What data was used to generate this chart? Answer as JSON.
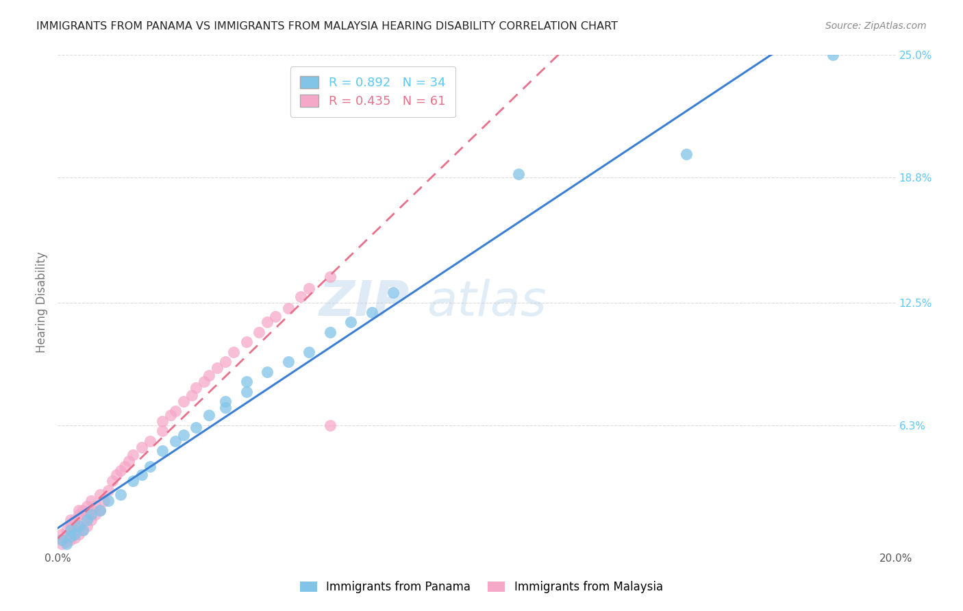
{
  "title": "IMMIGRANTS FROM PANAMA VS IMMIGRANTS FROM MALAYSIA HEARING DISABILITY CORRELATION CHART",
  "source": "Source: ZipAtlas.com",
  "ylabel": "Hearing Disability",
  "xlim": [
    0.0,
    0.2
  ],
  "ylim": [
    0.0,
    0.25
  ],
  "ytick_positions": [
    0.063,
    0.125,
    0.188,
    0.25
  ],
  "ytick_labels": [
    "6.3%",
    "12.5%",
    "18.8%",
    "25.0%"
  ],
  "panama_color": "#82c4e8",
  "malaysia_color": "#f5a8c8",
  "panama_line_color": "#3a7fd4",
  "malaysia_line_color": "#e8708a",
  "panama_R": 0.892,
  "panama_N": 34,
  "malaysia_R": 0.435,
  "malaysia_N": 61,
  "watermark_zip": "ZIP",
  "watermark_atlas": "atlas",
  "background_color": "#ffffff",
  "panama_x": [
    0.001,
    0.002,
    0.003,
    0.003,
    0.004,
    0.005,
    0.006,
    0.007,
    0.008,
    0.01,
    0.012,
    0.015,
    0.018,
    0.02,
    0.022,
    0.025,
    0.028,
    0.03,
    0.033,
    0.036,
    0.04,
    0.045,
    0.05,
    0.055,
    0.06,
    0.065,
    0.07,
    0.075,
    0.08,
    0.04,
    0.045,
    0.11,
    0.15,
    0.185
  ],
  "panama_y": [
    0.005,
    0.003,
    0.007,
    0.01,
    0.008,
    0.012,
    0.01,
    0.015,
    0.018,
    0.02,
    0.025,
    0.028,
    0.035,
    0.038,
    0.042,
    0.05,
    0.055,
    0.058,
    0.062,
    0.068,
    0.072,
    0.08,
    0.09,
    0.095,
    0.1,
    0.11,
    0.115,
    0.12,
    0.13,
    0.075,
    0.085,
    0.19,
    0.2,
    0.25
  ],
  "malaysia_x": [
    0.001,
    0.001,
    0.001,
    0.002,
    0.002,
    0.002,
    0.003,
    0.003,
    0.003,
    0.003,
    0.004,
    0.004,
    0.004,
    0.005,
    0.005,
    0.005,
    0.005,
    0.006,
    0.006,
    0.006,
    0.007,
    0.007,
    0.007,
    0.008,
    0.008,
    0.008,
    0.009,
    0.009,
    0.01,
    0.01,
    0.011,
    0.012,
    0.013,
    0.014,
    0.015,
    0.016,
    0.017,
    0.018,
    0.02,
    0.022,
    0.025,
    0.025,
    0.027,
    0.028,
    0.03,
    0.032,
    0.033,
    0.035,
    0.036,
    0.038,
    0.04,
    0.042,
    0.045,
    0.048,
    0.05,
    0.052,
    0.055,
    0.058,
    0.06,
    0.065,
    0.065
  ],
  "malaysia_y": [
    0.003,
    0.005,
    0.008,
    0.004,
    0.006,
    0.01,
    0.005,
    0.008,
    0.012,
    0.015,
    0.006,
    0.01,
    0.015,
    0.008,
    0.012,
    0.018,
    0.02,
    0.01,
    0.015,
    0.02,
    0.012,
    0.018,
    0.022,
    0.015,
    0.02,
    0.025,
    0.018,
    0.022,
    0.02,
    0.028,
    0.025,
    0.03,
    0.035,
    0.038,
    0.04,
    0.042,
    0.045,
    0.048,
    0.052,
    0.055,
    0.06,
    0.065,
    0.068,
    0.07,
    0.075,
    0.078,
    0.082,
    0.085,
    0.088,
    0.092,
    0.095,
    0.1,
    0.105,
    0.11,
    0.115,
    0.118,
    0.122,
    0.128,
    0.132,
    0.138,
    0.063
  ]
}
